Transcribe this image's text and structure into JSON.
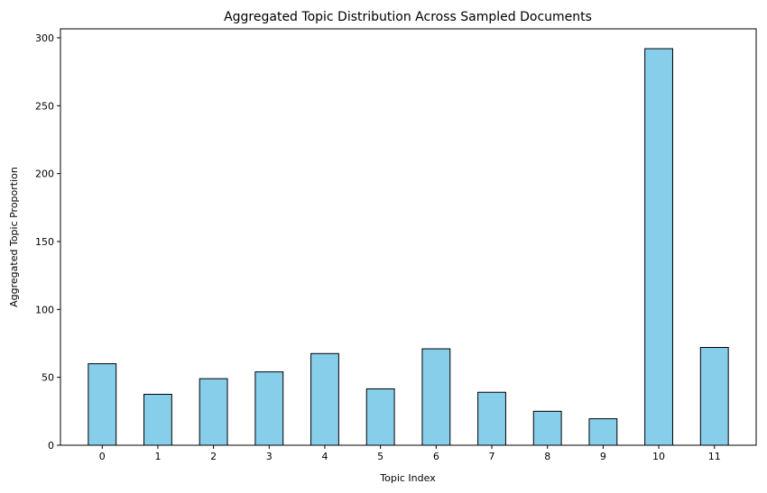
{
  "chart_data": {
    "type": "bar",
    "title": "Aggregated Topic Distribution Across Sampled Documents",
    "xlabel": "Topic Index",
    "ylabel": "Aggregated Topic Proportion",
    "categories": [
      "0",
      "1",
      "2",
      "3",
      "4",
      "5",
      "6",
      "7",
      "8",
      "9",
      "10",
      "11"
    ],
    "values": [
      60,
      37.5,
      49,
      54,
      67.5,
      41.5,
      71,
      39,
      25,
      19.5,
      292,
      72
    ],
    "ylim": [
      0,
      306.6
    ],
    "yticks": [
      0,
      50,
      100,
      150,
      200,
      250,
      300
    ],
    "bar_color": "#87ceeb",
    "bar_edge_color": "#000000",
    "grid": false,
    "legend": "none"
  }
}
